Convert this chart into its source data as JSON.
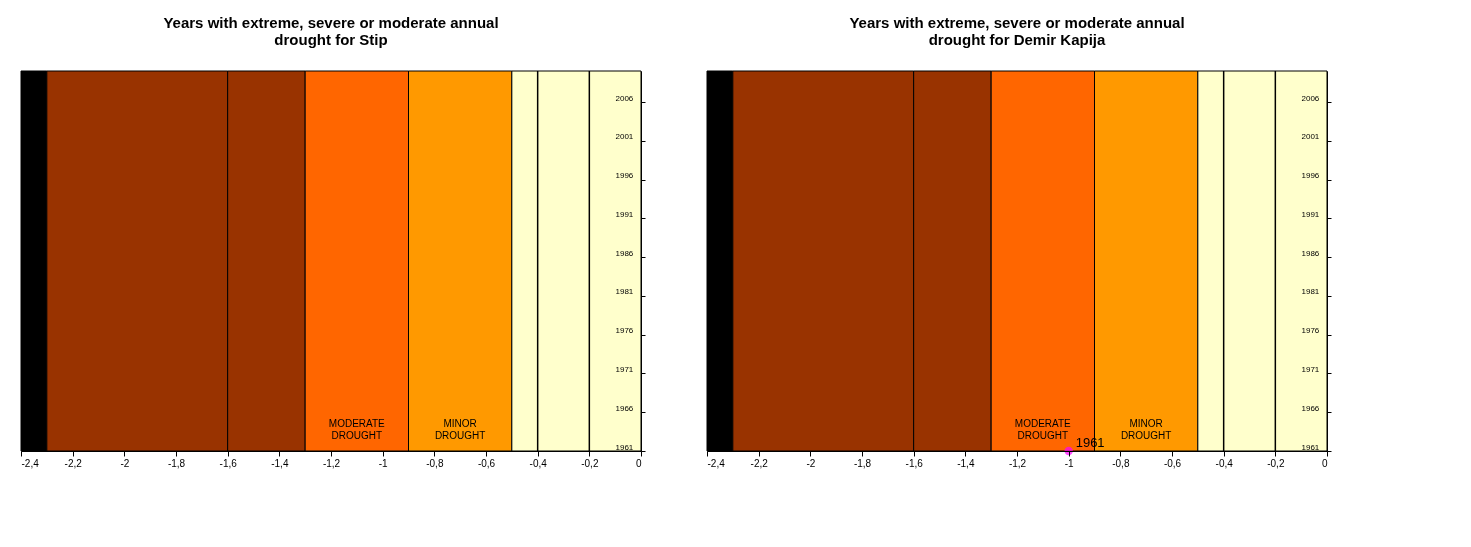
{
  "chart_data": [
    {
      "type": "scatter",
      "title": "Years with extreme, severe or moderate annual drought for Stip",
      "xlim": [
        -2.4,
        0
      ],
      "ylim": [
        1961,
        2010
      ],
      "xticks": [
        {
          "value": -2.4,
          "label": "-2,4"
        },
        {
          "value": -2.2,
          "label": "-2,2"
        },
        -2,
        {
          "value": -1.8,
          "label": "-1,8"
        },
        {
          "value": -1.6,
          "label": "-1,6"
        },
        {
          "value": -1.4,
          "label": "-1,4"
        },
        {
          "value": -1.2,
          "label": "-1,2"
        },
        -1,
        {
          "value": -0.8,
          "label": "-0,8"
        },
        {
          "value": -0.6,
          "label": "-0,6"
        },
        {
          "value": -0.4,
          "label": "-0,4"
        },
        {
          "value": -0.2,
          "label": "-0,2"
        },
        0
      ],
      "yticks": [
        1961,
        1966,
        1971,
        1976,
        1981,
        1986,
        1991,
        1996,
        2001,
        2006
      ],
      "bands": [
        {
          "axis": "x",
          "from": -2.4,
          "to": -2.3,
          "label": null,
          "color": "#000000"
        },
        {
          "axis": "x",
          "from": -2.3,
          "to": -1.6,
          "label": null,
          "color": "#993300"
        },
        {
          "axis": "x",
          "from": -1.6,
          "to": -1.3,
          "label": null,
          "color": "#993300"
        },
        {
          "axis": "x",
          "from": -1.3,
          "to": -0.9,
          "label": "MODERATE DROUGHT",
          "color": "#ff6600"
        },
        {
          "axis": "x",
          "from": -0.9,
          "to": -0.5,
          "label": "MINOR DROUGHT",
          "color": "#ff9900"
        },
        {
          "axis": "x",
          "from": -0.5,
          "to": 0,
          "label": null,
          "color": "#ffffcc"
        }
      ],
      "ref_lines": [
        {
          "axis": "x",
          "value": -0.4,
          "label": null,
          "color": "#000000"
        },
        {
          "axis": "x",
          "value": -0.2,
          "label": null,
          "color": "#000000"
        }
      ],
      "grid": false
    },
    {
      "type": "scatter",
      "title": "Years with extreme, severe or moderate annual drought for Demir Kapija",
      "series": [
        {
          "color": "#ff00ff",
          "x": [
            -1
          ],
          "values": [
            1961
          ],
          "value_labels": [
            "1961"
          ]
        }
      ],
      "xlim": [
        -2.4,
        0
      ],
      "ylim": [
        1961,
        2010
      ],
      "xticks": [
        {
          "value": -2.4,
          "label": "-2,4"
        },
        {
          "value": -2.2,
          "label": "-2,2"
        },
        -2,
        {
          "value": -1.8,
          "label": "-1,8"
        },
        {
          "value": -1.6,
          "label": "-1,6"
        },
        {
          "value": -1.4,
          "label": "-1,4"
        },
        {
          "value": -1.2,
          "label": "-1,2"
        },
        -1,
        {
          "value": -0.8,
          "label": "-0,8"
        },
        {
          "value": -0.6,
          "label": "-0,6"
        },
        {
          "value": -0.4,
          "label": "-0,4"
        },
        {
          "value": -0.2,
          "label": "-0,2"
        },
        0
      ],
      "yticks": [
        1961,
        1966,
        1971,
        1976,
        1981,
        1986,
        1991,
        1996,
        2001,
        2006
      ],
      "bands": [
        {
          "axis": "x",
          "from": -2.4,
          "to": -2.3,
          "label": null,
          "color": "#000000"
        },
        {
          "axis": "x",
          "from": -2.3,
          "to": -1.6,
          "label": null,
          "color": "#993300"
        },
        {
          "axis": "x",
          "from": -1.6,
          "to": -1.3,
          "label": null,
          "color": "#993300"
        },
        {
          "axis": "x",
          "from": -1.3,
          "to": -0.9,
          "label": "MODERATE DROUGHT",
          "color": "#ff6600"
        },
        {
          "axis": "x",
          "from": -0.9,
          "to": -0.5,
          "label": "MINOR DROUGHT",
          "color": "#ff9900"
        },
        {
          "axis": "x",
          "from": -0.5,
          "to": 0,
          "label": null,
          "color": "#ffffcc"
        }
      ],
      "ref_lines": [
        {
          "axis": "x",
          "value": -0.4,
          "label": null,
          "color": "#000000"
        },
        {
          "axis": "x",
          "value": -0.2,
          "label": null,
          "color": "#000000"
        }
      ],
      "grid": false,
      "marker": "circle"
    }
  ]
}
